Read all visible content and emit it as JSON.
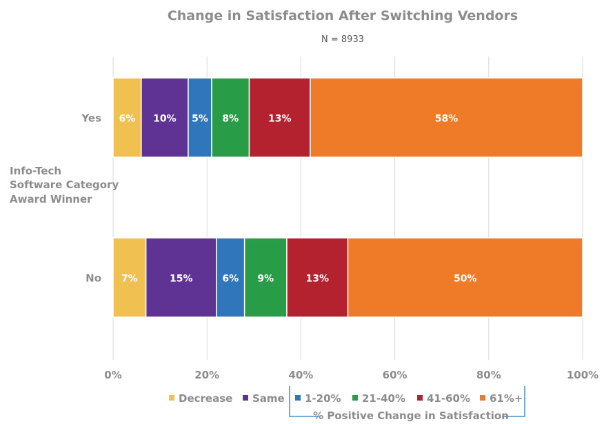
{
  "chart_data": {
    "type": "bar",
    "orientation": "horizontal-stacked",
    "title": "Change in Satisfaction After Switching Vendors",
    "subtitle": "N = 8933",
    "ylabel_lines": [
      "Info-Tech",
      "Software Category",
      "Award Winner"
    ],
    "categories": [
      "Yes",
      "No"
    ],
    "xlim": [
      0,
      100
    ],
    "xticks": [
      "0%",
      "20%",
      "40%",
      "60%",
      "80%",
      "100%"
    ],
    "grid": true,
    "legend_position": "bottom",
    "legend_group_label": "% Positive Change in Satisfaction",
    "series": [
      {
        "name": "Decrease",
        "color": "#f0c050",
        "values": [
          6,
          7
        ],
        "labels": [
          "6%",
          "7%"
        ]
      },
      {
        "name": "Same",
        "color": "#5f3393",
        "values": [
          10,
          15
        ],
        "labels": [
          "10%",
          "15%"
        ]
      },
      {
        "name": "1-20%",
        "color": "#2f76bb",
        "values": [
          5,
          6
        ],
        "labels": [
          "5%",
          "6%"
        ]
      },
      {
        "name": "21-40%",
        "color": "#289c47",
        "values": [
          8,
          9
        ],
        "labels": [
          "8%",
          "9%"
        ]
      },
      {
        "name": "41-60%",
        "color": "#b3222e",
        "values": [
          13,
          13
        ],
        "labels": [
          "13%",
          "13%"
        ]
      },
      {
        "name": "61%+",
        "color": "#ef7b28",
        "values": [
          58,
          50
        ],
        "labels": [
          "58%",
          "50%"
        ]
      }
    ]
  }
}
